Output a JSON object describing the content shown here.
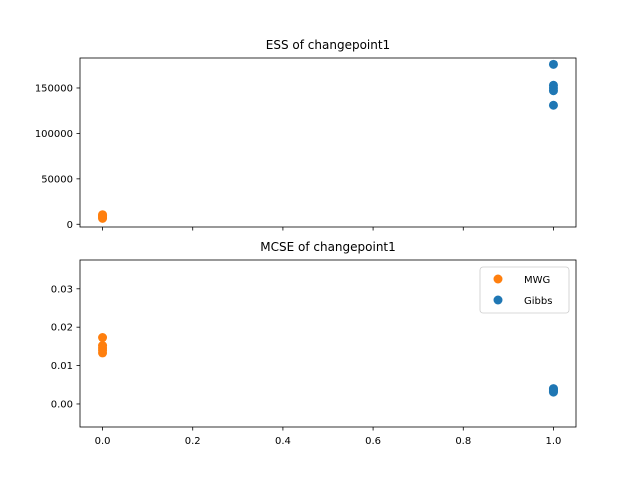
{
  "chart_data": [
    {
      "type": "scatter",
      "title": "ESS of changepoint1",
      "xlabel": "",
      "ylabel": "",
      "xlim": [
        -0.05,
        1.05
      ],
      "ylim": [
        -3000,
        183000
      ],
      "x_ticks": [
        0.0,
        0.2,
        0.4,
        0.6,
        0.8,
        1.0
      ],
      "x_tick_labels_shown": false,
      "y_ticks": [
        0,
        50000,
        100000,
        150000
      ],
      "y_tick_labels": [
        "0",
        "50000",
        "100000",
        "150000"
      ],
      "grid": false,
      "series": [
        {
          "name": "MWG",
          "color": "#ff7f0e",
          "points": [
            [
              0.0,
              6500
            ],
            [
              0.0,
              7500
            ],
            [
              0.0,
              8500
            ],
            [
              0.0,
              9500
            ],
            [
              0.0,
              10500
            ]
          ]
        },
        {
          "name": "Gibbs",
          "color": "#1f77b4",
          "points": [
            [
              1.0,
              176000
            ],
            [
              1.0,
              153000
            ],
            [
              1.0,
              150000
            ],
            [
              1.0,
              147000
            ],
            [
              1.0,
              131000
            ]
          ]
        }
      ]
    },
    {
      "type": "scatter",
      "title": "MCSE of changepoint1",
      "xlabel": "",
      "ylabel": "",
      "xlim": [
        -0.05,
        1.05
      ],
      "ylim": [
        -0.006,
        0.0375
      ],
      "x_ticks": [
        0.0,
        0.2,
        0.4,
        0.6,
        0.8,
        1.0
      ],
      "x_tick_labels": [
        "0.0",
        "0.2",
        "0.4",
        "0.6",
        "0.8",
        "1.0"
      ],
      "y_ticks": [
        0.0,
        0.01,
        0.02,
        0.03
      ],
      "y_tick_labels": [
        "0.00",
        "0.01",
        "0.02",
        "0.03"
      ],
      "grid": false,
      "legend": {
        "position": "top-right",
        "entries": [
          {
            "label": "MWG",
            "color": "#ff7f0e"
          },
          {
            "label": "Gibbs",
            "color": "#1f77b4"
          }
        ]
      },
      "series": [
        {
          "name": "MWG",
          "color": "#ff7f0e",
          "points": [
            [
              0.0,
              0.0173
            ],
            [
              0.0,
              0.0152
            ],
            [
              0.0,
              0.0146
            ],
            [
              0.0,
              0.014
            ],
            [
              0.0,
              0.0133
            ]
          ]
        },
        {
          "name": "Gibbs",
          "color": "#1f77b4",
          "points": [
            [
              1.0,
              0.004
            ],
            [
              1.0,
              0.0037
            ],
            [
              1.0,
              0.0035
            ],
            [
              1.0,
              0.0033
            ],
            [
              1.0,
              0.0031
            ]
          ]
        }
      ]
    }
  ]
}
